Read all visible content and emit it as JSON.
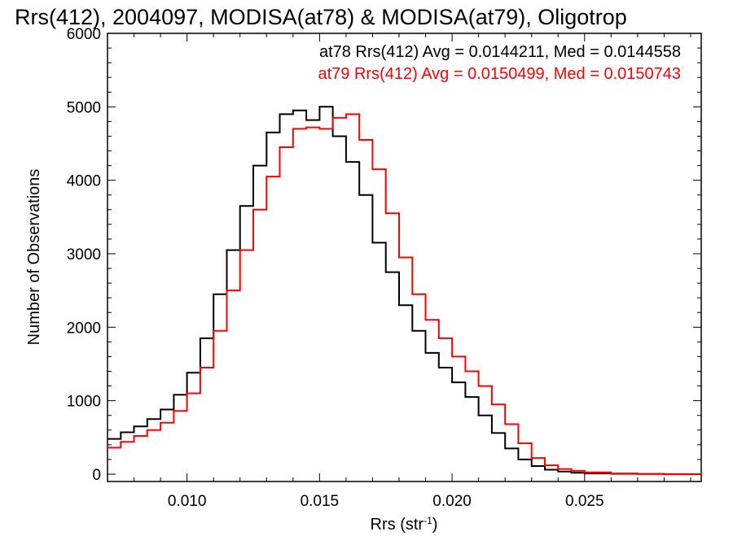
{
  "chart_data": {
    "type": "line",
    "title": "Rrs(412), 2004097, MODISA(at78) & MODISA(at79), Oligotrop",
    "xlabel": "Rrs (str",
    "xlabel_superscript": "-1",
    "xlabel_close": ")",
    "ylabel": "Number of Observations",
    "xlim": [
      0.007,
      0.0294
    ],
    "ylim": [
      -100,
      6000
    ],
    "xticks": [
      0.01,
      0.015,
      0.02,
      0.025
    ],
    "xtick_labels": [
      "0.010",
      "0.015",
      "0.020",
      "0.025"
    ],
    "yticks": [
      0,
      1000,
      2000,
      3000,
      4000,
      5000,
      6000
    ],
    "ytick_labels": [
      "0",
      "1000",
      "2000",
      "3000",
      "4000",
      "5000",
      "6000"
    ],
    "grid": false,
    "legend_position": "top-right",
    "series": [
      {
        "name": "at78",
        "color": "#000000",
        "legend": "at78 Rrs(412) Avg = 0.0144211, Med = 0.0144558",
        "x": [
          0.007,
          0.0075,
          0.008,
          0.0085,
          0.009,
          0.0095,
          0.01,
          0.0105,
          0.011,
          0.0115,
          0.012,
          0.0125,
          0.013,
          0.0135,
          0.014,
          0.0145,
          0.015,
          0.0155,
          0.016,
          0.0165,
          0.017,
          0.0175,
          0.018,
          0.0185,
          0.019,
          0.0195,
          0.02,
          0.0205,
          0.021,
          0.0215,
          0.022,
          0.0225,
          0.023,
          0.0235,
          0.024,
          0.0245,
          0.025,
          0.026,
          0.027,
          0.028,
          0.0294
        ],
        "y": [
          480,
          570,
          650,
          750,
          880,
          1080,
          1380,
          1850,
          2450,
          3050,
          3650,
          4200,
          4650,
          4900,
          4950,
          4820,
          5000,
          4600,
          4250,
          3800,
          3150,
          2750,
          2300,
          1950,
          1650,
          1450,
          1250,
          1050,
          800,
          560,
          350,
          200,
          110,
          60,
          35,
          20,
          10,
          5,
          2,
          0,
          0
        ]
      },
      {
        "name": "at79",
        "color": "#ff0000",
        "legend": "at79 Rrs(412) Avg = 0.0150499, Med = 0.0150743",
        "x": [
          0.007,
          0.0075,
          0.008,
          0.0085,
          0.009,
          0.0095,
          0.01,
          0.0105,
          0.011,
          0.0115,
          0.012,
          0.0125,
          0.013,
          0.0135,
          0.014,
          0.0145,
          0.015,
          0.0155,
          0.016,
          0.0165,
          0.017,
          0.0175,
          0.018,
          0.0185,
          0.019,
          0.0195,
          0.02,
          0.0205,
          0.021,
          0.0215,
          0.022,
          0.0225,
          0.023,
          0.0235,
          0.024,
          0.0245,
          0.025,
          0.026,
          0.027,
          0.028,
          0.0294
        ],
        "y": [
          360,
          440,
          520,
          600,
          700,
          860,
          1100,
          1450,
          1950,
          2500,
          3050,
          3600,
          4050,
          4450,
          4700,
          4720,
          4700,
          4850,
          4900,
          4550,
          4150,
          3550,
          2950,
          2450,
          2100,
          1850,
          1600,
          1400,
          1200,
          950,
          680,
          420,
          220,
          120,
          70,
          45,
          25,
          10,
          4,
          1,
          0
        ]
      }
    ]
  }
}
